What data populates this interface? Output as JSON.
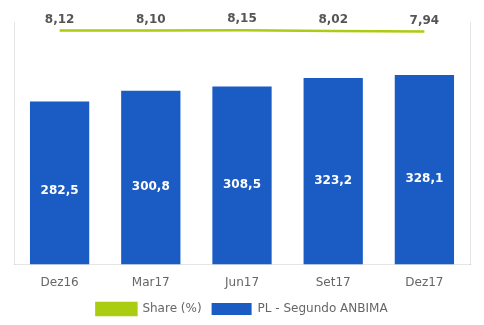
{
  "chart_data": {
    "type": "bar",
    "categories": [
      "Dez16",
      "Mar17",
      "Jun17",
      "Set17",
      "Dez17"
    ],
    "series": [
      {
        "name": "PL - Segundo ANBIMA",
        "type": "bar",
        "color": "#1A5BC4",
        "values": [
          282.5,
          300.8,
          308.5,
          323.2,
          328.1
        ],
        "value_labels": [
          "282,5",
          "300,8",
          "308,5",
          "323,2",
          "328,1"
        ]
      },
      {
        "name": "Share (%)",
        "type": "line",
        "color": "#AACC11",
        "axis": "y2",
        "values": [
          8.12,
          8.1,
          8.15,
          8.02,
          7.94
        ],
        "value_labels": [
          "8,12",
          "8,10",
          "8,15",
          "8,02",
          "7,94"
        ]
      }
    ],
    "ylim": [
      0,
      420
    ],
    "y2lim": [
      -30,
      9.5
    ],
    "grid": false,
    "legend": "bottom",
    "data_labels": true,
    "tick_labels": "x"
  }
}
